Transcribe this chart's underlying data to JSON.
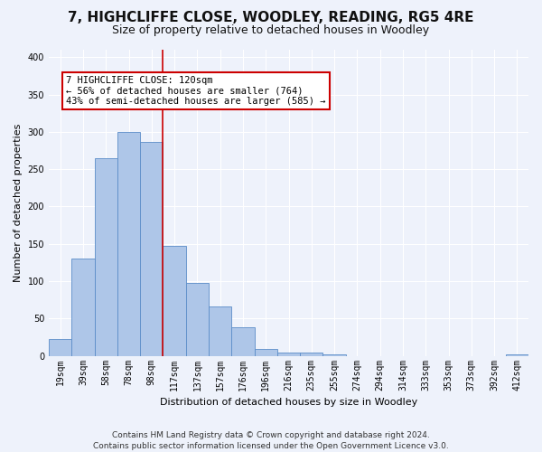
{
  "title": "7, HIGHCLIFFE CLOSE, WOODLEY, READING, RG5 4RE",
  "subtitle": "Size of property relative to detached houses in Woodley",
  "xlabel": "Distribution of detached houses by size in Woodley",
  "ylabel": "Number of detached properties",
  "footer_line1": "Contains HM Land Registry data © Crown copyright and database right 2024.",
  "footer_line2": "Contains public sector information licensed under the Open Government Licence v3.0.",
  "bin_labels": [
    "19sqm",
    "39sqm",
    "58sqm",
    "78sqm",
    "98sqm",
    "117sqm",
    "137sqm",
    "157sqm",
    "176sqm",
    "196sqm",
    "216sqm",
    "235sqm",
    "255sqm",
    "274sqm",
    "294sqm",
    "314sqm",
    "333sqm",
    "353sqm",
    "373sqm",
    "392sqm",
    "412sqm"
  ],
  "bar_values": [
    22,
    130,
    265,
    300,
    287,
    147,
    98,
    66,
    38,
    9,
    5,
    5,
    2,
    0,
    0,
    0,
    0,
    0,
    0,
    0,
    2
  ],
  "bar_color": "#aec6e8",
  "bar_edge_color": "#5b8dc8",
  "property_line_x": 4.5,
  "vline_color": "#cc0000",
  "annotation_text": "7 HIGHCLIFFE CLOSE: 120sqm\n← 56% of detached houses are smaller (764)\n43% of semi-detached houses are larger (585) →",
  "annotation_box_color": "#ffffff",
  "annotation_box_edge_color": "#cc0000",
  "ylim_max": 410,
  "yticks": [
    0,
    50,
    100,
    150,
    200,
    250,
    300,
    350,
    400
  ],
  "background_color": "#eef2fb",
  "grid_color": "#ffffff",
  "title_fontsize": 11,
  "subtitle_fontsize": 9,
  "axis_label_fontsize": 8,
  "tick_fontsize": 7,
  "annotation_fontsize": 7.5,
  "footer_fontsize": 6.5
}
